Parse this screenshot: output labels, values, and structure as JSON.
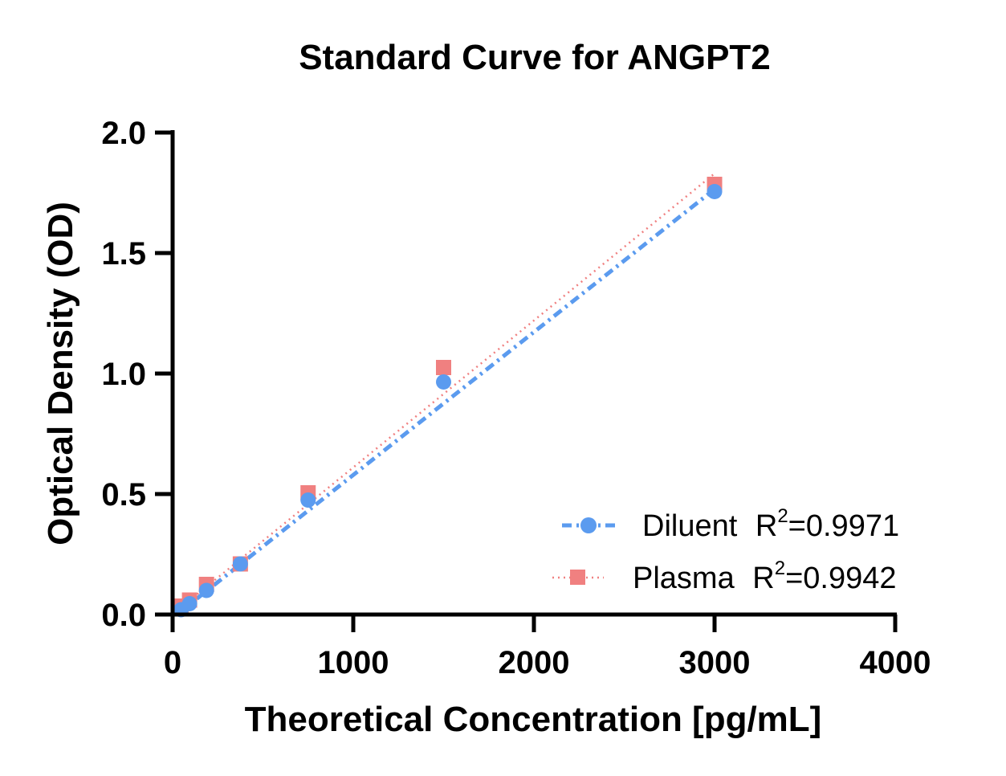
{
  "chart_data": {
    "type": "scatter",
    "title": "Standard Curve for ANGPT2",
    "xlabel": "Theoretical Concentration [pg/mL]",
    "ylabel": "Optical Density (OD)",
    "xlim": [
      0,
      4000
    ],
    "ylim": [
      0,
      2.0
    ],
    "xticks": [
      0,
      1000,
      2000,
      3000,
      4000
    ],
    "xtick_labels": [
      "0",
      "1000",
      "2000",
      "3000",
      "4000"
    ],
    "yticks": [
      0,
      0.5,
      1.0,
      1.5,
      2.0
    ],
    "ytick_labels": [
      "0.0",
      "0.5",
      "1.0",
      "1.5",
      "2.0"
    ],
    "grid": false,
    "legend_position": "bottom-right",
    "series": [
      {
        "name": "Diluent",
        "r2_prefix": "R",
        "r2_exp": "2",
        "r2_value": "=0.9971",
        "color": "#5b9bef",
        "marker": "circle",
        "line_style": "dash-dot",
        "x": [
          46.875,
          93.75,
          187.5,
          375,
          750,
          1500,
          3000
        ],
        "y": [
          0.02,
          0.045,
          0.1,
          0.21,
          0.475,
          0.965,
          1.755
        ],
        "fit": {
          "x": [
            40,
            3000
          ],
          "y": [
            0.01,
            1.765
          ]
        }
      },
      {
        "name": "Plasma",
        "r2_prefix": "R",
        "r2_exp": "2",
        "r2_value": "=0.9942",
        "color": "#f08080",
        "marker": "square",
        "line_style": "dotted",
        "x": [
          46.875,
          93.75,
          187.5,
          375,
          750,
          1500,
          3000
        ],
        "y": [
          0.035,
          0.06,
          0.125,
          0.21,
          0.505,
          1.025,
          1.785
        ],
        "fit": {
          "x": [
            40,
            3000
          ],
          "y": [
            0.025,
            1.83
          ]
        }
      }
    ]
  }
}
